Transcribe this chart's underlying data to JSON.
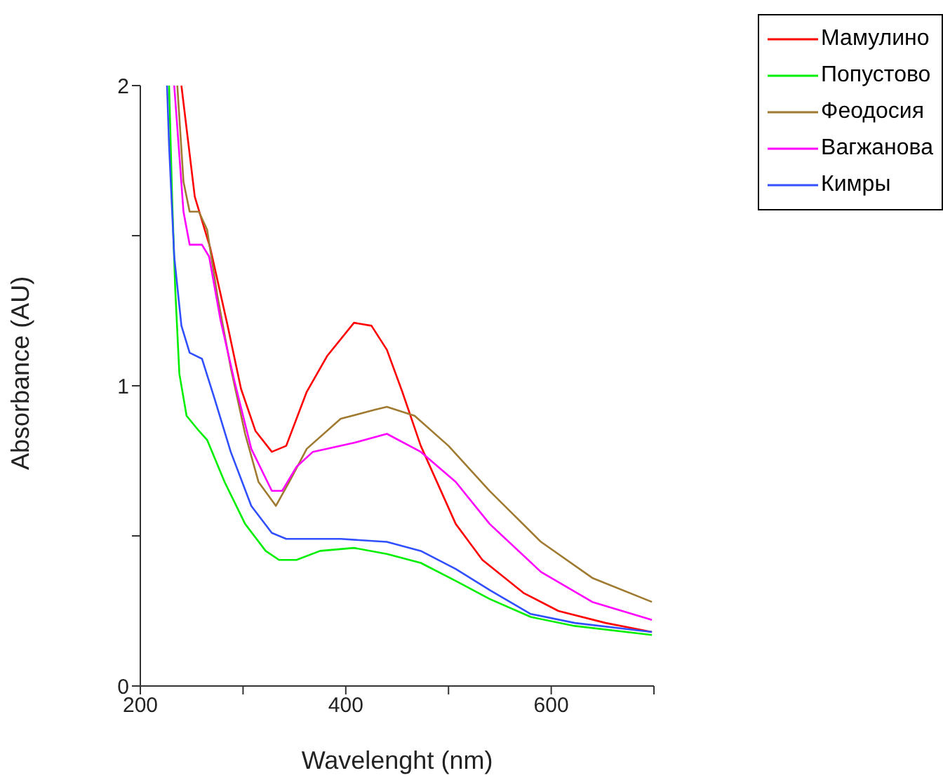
{
  "chart_data": {
    "type": "line",
    "xlabel": "Wavelenght (nm)",
    "ylabel": "Absorbance (AU)",
    "xlim": [
      200,
      700
    ],
    "ylim": [
      0,
      2
    ],
    "xticks": [
      200,
      {
        "value": 300,
        "label": null
      },
      400,
      {
        "value": 500,
        "label": null
      },
      600,
      {
        "value": 700,
        "label": null
      }
    ],
    "yticks": [
      0,
      {
        "value": 0.5,
        "label": null
      },
      1,
      {
        "value": 1.5,
        "label": null
      },
      2
    ],
    "grid": false,
    "legend": "top right",
    "marker": "none",
    "line_style": "solid",
    "series": [
      {
        "name": "Мамулино",
        "color": "#ff0000",
        "x": [
          240,
          253,
          268,
          285,
          298,
          312,
          328,
          342,
          362,
          382,
          408,
          425,
          440,
          455,
          473,
          507,
          533,
          573,
          607,
          653,
          698
        ],
        "values": [
          2.0,
          1.63,
          1.46,
          1.2,
          0.99,
          0.85,
          0.78,
          0.8,
          0.98,
          1.1,
          1.21,
          1.2,
          1.12,
          0.98,
          0.8,
          0.54,
          0.42,
          0.31,
          0.25,
          0.21,
          0.18
        ]
      },
      {
        "name": "Попустово",
        "color": "#00ee00",
        "x": [
          228,
          231,
          234,
          238,
          245,
          257,
          265,
          282,
          302,
          322,
          335,
          352,
          375,
          408,
          440,
          473,
          507,
          540,
          580,
          623,
          698
        ],
        "values": [
          2.0,
          1.62,
          1.32,
          1.04,
          0.9,
          0.85,
          0.82,
          0.68,
          0.54,
          0.45,
          0.42,
          0.42,
          0.45,
          0.46,
          0.44,
          0.41,
          0.35,
          0.29,
          0.23,
          0.2,
          0.17
        ]
      },
      {
        "name": "Феодосия",
        "color": "#a07a30",
        "x": [
          236,
          242,
          248,
          257,
          265,
          275,
          288,
          302,
          315,
          332,
          345,
          362,
          395,
          428,
          440,
          467,
          500,
          540,
          590,
          640,
          698
        ],
        "values": [
          2.0,
          1.68,
          1.58,
          1.58,
          1.52,
          1.3,
          1.06,
          0.84,
          0.68,
          0.6,
          0.68,
          0.79,
          0.89,
          0.92,
          0.93,
          0.9,
          0.8,
          0.65,
          0.48,
          0.36,
          0.28
        ]
      },
      {
        "name": "Вагжанова",
        "color": "#ff00ff",
        "x": [
          233,
          242,
          248,
          260,
          267,
          278,
          292,
          308,
          328,
          338,
          352,
          368,
          408,
          440,
          473,
          507,
          540,
          590,
          640,
          698
        ],
        "values": [
          2.0,
          1.58,
          1.47,
          1.47,
          1.43,
          1.22,
          1.01,
          0.79,
          0.65,
          0.65,
          0.73,
          0.78,
          0.81,
          0.84,
          0.78,
          0.68,
          0.54,
          0.38,
          0.28,
          0.22
        ]
      },
      {
        "name": "Кимры",
        "color": "#3050ff",
        "x": [
          226,
          228,
          233,
          240,
          248,
          260,
          272,
          288,
          308,
          328,
          342,
          395,
          440,
          473,
          507,
          540,
          580,
          623,
          698
        ],
        "values": [
          2.0,
          1.8,
          1.43,
          1.2,
          1.11,
          1.09,
          0.96,
          0.78,
          0.6,
          0.51,
          0.49,
          0.49,
          0.48,
          0.45,
          0.39,
          0.32,
          0.24,
          0.21,
          0.18
        ]
      }
    ]
  }
}
